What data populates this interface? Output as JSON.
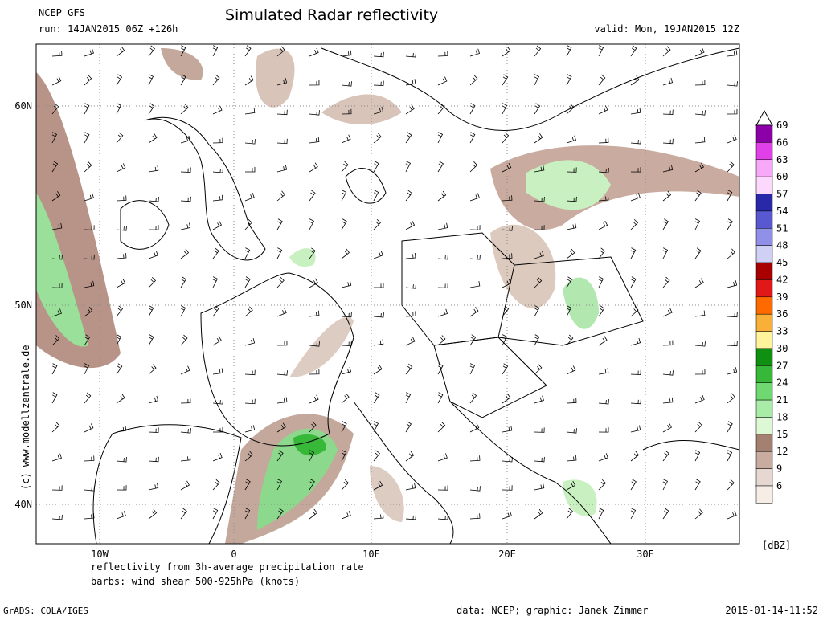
{
  "header": {
    "model": "NCEP GFS",
    "run": "run: 14JAN2015 06Z +126h",
    "title": "Simulated Radar reflectivity",
    "valid": "valid: Mon, 19JAN2015 12Z"
  },
  "map": {
    "lat_labels": [
      "60N",
      "50N",
      "40N"
    ],
    "lon_labels": [
      "10W",
      "0",
      "10E",
      "20E",
      "30E"
    ],
    "credit": "(c) www.modellzentrale.de",
    "note1": "reflectivity from 3h-average precipitation rate",
    "note2": "barbs: wind shear 500-925hPa (knots)"
  },
  "colorbar": {
    "levels": [
      69,
      66,
      63,
      60,
      57,
      54,
      51,
      48,
      45,
      42,
      39,
      36,
      33,
      30,
      27,
      24,
      21,
      18,
      15,
      12,
      9,
      6
    ],
    "colors": [
      "#8c00a8",
      "#e040e8",
      "#f8a8f8",
      "#fcd8fc",
      "#2828a8",
      "#5858d0",
      "#9090e8",
      "#d0d0f4",
      "#a80000",
      "#e01818",
      "#ff6a00",
      "#f8b038",
      "#fff49c",
      "#109010",
      "#38b838",
      "#70d870",
      "#a8eca8",
      "#dcf8d4",
      "#a48070",
      "#c8aca0",
      "#e6d8d0",
      "#f6eee6"
    ],
    "unit": "[dBZ]"
  },
  "footer": {
    "grads": "GrADS: COLA/IGES",
    "data": "data: NCEP; graphic: Janek Zimmer",
    "timestamp": "2015-01-14-11:52"
  }
}
